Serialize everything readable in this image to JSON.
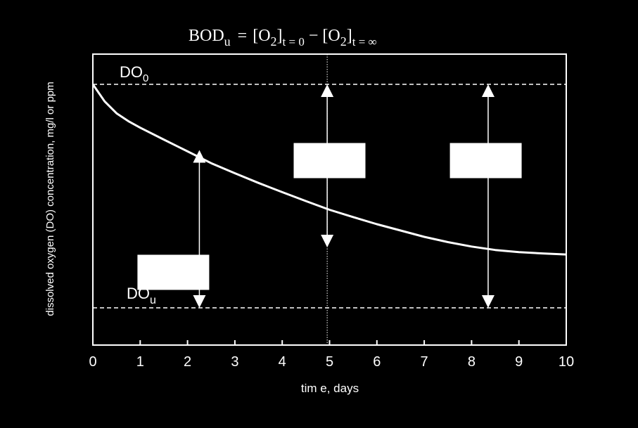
{
  "chart_data": {
    "type": "line",
    "title": {
      "lhs_main": "BOD",
      "lhs_sub": "u",
      "term1_main": "[O",
      "term1_sub": "2",
      "term1_close": "]",
      "term1_cond": "t = 0",
      "minus": "−",
      "term2_main": "[O",
      "term2_sub": "2",
      "term2_close": "]",
      "term2_cond": "t = ∞",
      "equals": "="
    },
    "xlabel": "tim e, days",
    "ylabel": "dissolved oxygen (DO) concentration, mg/l or ppm",
    "xlim": [
      0,
      10
    ],
    "ylim": [
      0,
      1
    ],
    "x_ticks": [
      "0",
      "1",
      "2",
      "3",
      "4",
      "5",
      "6",
      "7",
      "8",
      "9",
      "10"
    ],
    "grid": false,
    "series": [
      {
        "x": [
          0,
          0.25,
          0.5,
          0.75,
          1,
          1.5,
          2,
          2.5,
          3,
          3.5,
          4,
          4.5,
          5,
          5.5,
          6,
          6.5,
          7,
          7.5,
          8,
          8.5,
          9,
          9.5,
          10
        ],
        "y": [
          1.0,
          0.935,
          0.89,
          0.86,
          0.835,
          0.79,
          0.745,
          0.7,
          0.662,
          0.625,
          0.59,
          0.556,
          0.523,
          0.495,
          0.468,
          0.444,
          0.42,
          0.4,
          0.383,
          0.37,
          0.362,
          0.357,
          0.353
        ]
      }
    ],
    "reference_lines": [
      {
        "y": 1.0,
        "label_main": "DO",
        "label_sub": "0",
        "style": "dashed"
      },
      {
        "y": 0.15,
        "label_main": "DO",
        "label_sub": "u",
        "style": "dashed"
      }
    ],
    "vertical_line": {
      "x": 4.95,
      "style": "dotted"
    },
    "arrows": [
      {
        "x": 2.25,
        "y_from": 0.15,
        "y_to": 0.75
      },
      {
        "x": 4.95,
        "y_from": 0.38,
        "y_to": 1.0
      },
      {
        "x": 8.35,
        "y_from": 0.15,
        "y_to": 1.0
      }
    ],
    "boxes": [
      {
        "x": 1.7,
        "y": 0.285
      },
      {
        "x": 5.0,
        "y": 0.71
      },
      {
        "x": 8.3,
        "y": 0.71
      }
    ],
    "colors": {
      "background": "#000000",
      "foreground": "#ffffff"
    }
  }
}
